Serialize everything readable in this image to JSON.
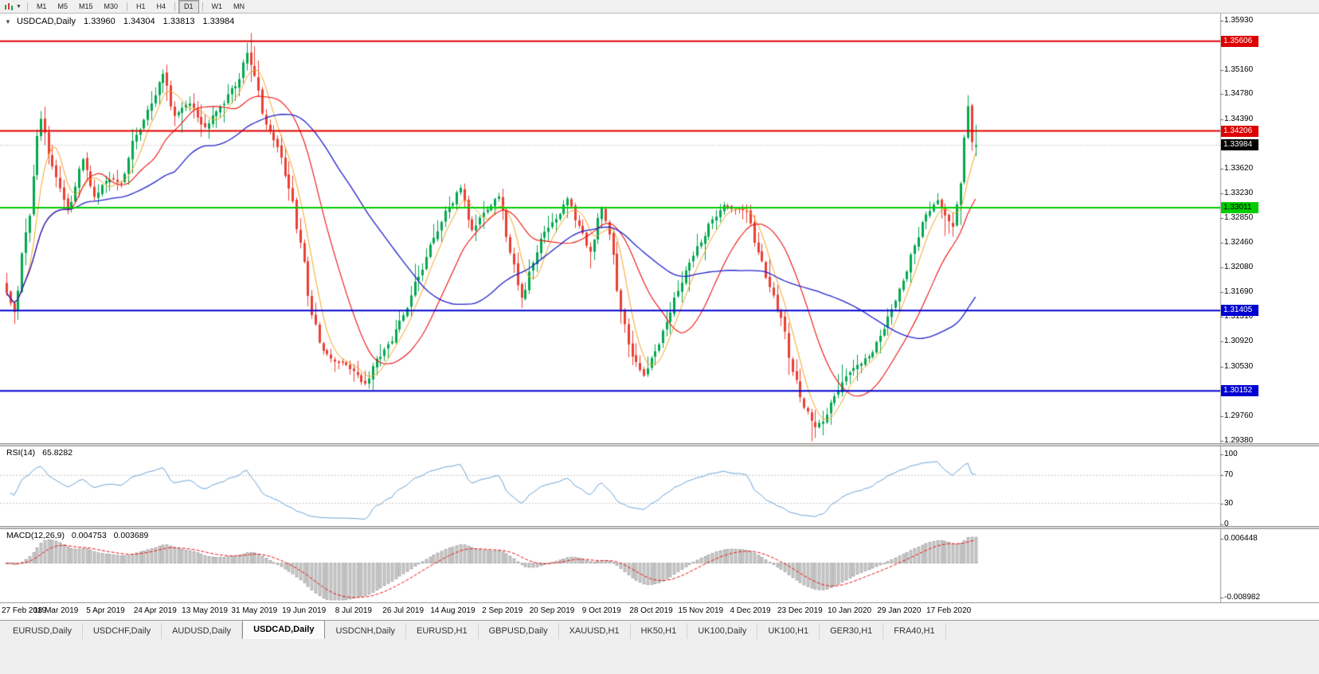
{
  "toolbar": {
    "chart_type_icon": "candlestick-chart-icon",
    "dropdown_icon": "caret-down-icon",
    "timeframes": [
      "M1",
      "M5",
      "M15",
      "M30",
      "H1",
      "H4",
      "D1",
      "W1",
      "MN"
    ],
    "active_timeframe": "D1"
  },
  "chart": {
    "header": {
      "marker": "▼",
      "symbol": "USDCAD,Daily",
      "open": "1.33960",
      "high": "1.34304",
      "low": "1.33813",
      "close": "1.33984"
    },
    "price_axis_ticks": [
      "1.35930",
      "1.35160",
      "1.34780",
      "1.34390",
      "1.33620",
      "1.33230",
      "1.32850",
      "1.32460",
      "1.32080",
      "1.31690",
      "1.31310",
      "1.30920",
      "1.30530",
      "1.29760",
      "1.29380"
    ],
    "date_axis": [
      "27 Feb 2019",
      "18 Mar 2019",
      "5 Apr 2019",
      "24 Apr 2019",
      "13 May 2019",
      "31 May 2019",
      "19 Jun 2019",
      "8 Jul 2019",
      "26 Jul 2019",
      "14 Aug 2019",
      "2 Sep 2019",
      "20 Sep 2019",
      "9 Oct 2019",
      "28 Oct 2019",
      "15 Nov 2019",
      "4 Dec 2019",
      "23 Dec 2019",
      "10 Jan 2020",
      "29 Jan 2020",
      "17 Feb 2020"
    ],
    "hlines": [
      {
        "price": 1.35606,
        "label": "1.35606",
        "color": "#dd0000",
        "text": "#ffffff"
      },
      {
        "price": 1.34206,
        "label": "1.34206",
        "color": "#dd0000",
        "text": "#ffffff"
      },
      {
        "price": 1.33011,
        "label": "1.33011",
        "color": "#00cc00",
        "text": "#000000"
      },
      {
        "price": 1.31405,
        "label": "1.31405",
        "color": "#0000d0",
        "text": "#ffffff"
      },
      {
        "price": 1.30152,
        "label": "1.30152",
        "color": "#0000d0",
        "text": "#ffffff"
      }
    ],
    "current_price": {
      "label": "1.33984",
      "value": 1.33984,
      "bg": "#000000",
      "text": "#ffffff"
    },
    "colors": {
      "up": "#02a84e",
      "down": "#e93f33",
      "ma_fast": "#f5a623",
      "ma_mid": "#ee1111",
      "ma_slow": "#2222cc",
      "bid_line": "#b0b0b0"
    }
  },
  "indicators": {
    "rsi": {
      "title": "RSI(14)",
      "value": "65.8282",
      "axis": [
        {
          "label": "100",
          "value": 100
        },
        {
          "label": "70",
          "value": 70
        },
        {
          "label": "30",
          "value": 30
        },
        {
          "label": "0",
          "value": 0
        }
      ],
      "levels": [
        70,
        30
      ],
      "line_color": "#6ba3d6",
      "level_color": "#c8c8c8"
    },
    "macd": {
      "title": "MACD(12,26,9)",
      "values": [
        "0.004753",
        "0.003689"
      ],
      "axis": [
        {
          "label": "0.006448",
          "value": 0.006448
        },
        {
          "label": "-0.008982",
          "value": -0.008982
        }
      ],
      "histogram_fill": "#cdcdcd",
      "histogram_stroke": "#8a8a8a",
      "signal_color": "#ee1111"
    }
  },
  "tabs": {
    "items": [
      "EURUSD,Daily",
      "USDCHF,Daily",
      "AUDUSD,Daily",
      "USDCAD,Daily",
      "USDCNH,Daily",
      "EURUSD,H1",
      "GBPUSD,Daily",
      "XAUUSD,H1",
      "HK50,H1",
      "UK100,Daily",
      "UK100,H1",
      "GER30,H1",
      "FRA40,H1"
    ],
    "active": "USDCAD,Daily"
  },
  "chart_data": {
    "type": "candlestick",
    "symbol": "USDCAD",
    "timeframe": "Daily",
    "visible_range": {
      "start": "27 Feb 2019",
      "end": "17 Feb 2020 + 7 bars"
    },
    "bars": 255,
    "price_range": [
      1.293,
      1.3605
    ],
    "last_bar": {
      "open": 1.3396,
      "high": 1.34304,
      "low": 1.33813,
      "close": 1.33984
    },
    "close_anchors": [
      [
        0,
        1.3168
      ],
      [
        2,
        1.3136
      ],
      [
        5,
        1.3262
      ],
      [
        9,
        1.3438
      ],
      [
        12,
        1.3362
      ],
      [
        14,
        1.3332
      ],
      [
        16,
        1.3296
      ],
      [
        20,
        1.3376
      ],
      [
        23,
        1.3322
      ],
      [
        26,
        1.335
      ],
      [
        30,
        1.3346
      ],
      [
        34,
        1.3416
      ],
      [
        38,
        1.3468
      ],
      [
        41,
        1.3512
      ],
      [
        44,
        1.3446
      ],
      [
        48,
        1.3466
      ],
      [
        52,
        1.3428
      ],
      [
        56,
        1.3456
      ],
      [
        60,
        1.3492
      ],
      [
        63,
        1.3546
      ],
      [
        65,
        1.3506
      ],
      [
        68,
        1.3428
      ],
      [
        71,
        1.3396
      ],
      [
        74,
        1.3332
      ],
      [
        77,
        1.3242
      ],
      [
        80,
        1.3132
      ],
      [
        83,
        1.3076
      ],
      [
        87,
        1.3056
      ],
      [
        91,
        1.3042
      ],
      [
        94,
        1.3026
      ],
      [
        97,
        1.3062
      ],
      [
        100,
        1.3086
      ],
      [
        104,
        1.3132
      ],
      [
        108,
        1.3196
      ],
      [
        112,
        1.3256
      ],
      [
        116,
        1.3302
      ],
      [
        119,
        1.3332
      ],
      [
        122,
        1.3266
      ],
      [
        126,
        1.3296
      ],
      [
        129,
        1.3322
      ],
      [
        132,
        1.3232
      ],
      [
        135,
        1.3166
      ],
      [
        138,
        1.3216
      ],
      [
        141,
        1.3266
      ],
      [
        144,
        1.3286
      ],
      [
        147,
        1.3316
      ],
      [
        150,
        1.3272
      ],
      [
        153,
        1.3232
      ],
      [
        156,
        1.3302
      ],
      [
        158,
        1.3262
      ],
      [
        161,
        1.3142
      ],
      [
        164,
        1.3072
      ],
      [
        167,
        1.3046
      ],
      [
        170,
        1.3082
      ],
      [
        173,
        1.3122
      ],
      [
        176,
        1.3172
      ],
      [
        179,
        1.3212
      ],
      [
        182,
        1.3246
      ],
      [
        185,
        1.3282
      ],
      [
        188,
        1.3302
      ],
      [
        191,
        1.3292
      ],
      [
        194,
        1.3296
      ],
      [
        197,
        1.3232
      ],
      [
        200,
        1.3172
      ],
      [
        203,
        1.3122
      ],
      [
        206,
        1.3042
      ],
      [
        209,
        1.2986
      ],
      [
        212,
        1.2956
      ],
      [
        214,
        1.2966
      ],
      [
        217,
        1.3012
      ],
      [
        220,
        1.3036
      ],
      [
        223,
        1.3052
      ],
      [
        226,
        1.3072
      ],
      [
        229,
        1.3106
      ],
      [
        232,
        1.3142
      ],
      [
        235,
        1.3186
      ],
      [
        238,
        1.3242
      ],
      [
        241,
        1.3292
      ],
      [
        244,
        1.3316
      ],
      [
        246,
        1.3292
      ],
      [
        248,
        1.3272
      ],
      [
        250,
        1.3342
      ],
      [
        251,
        1.3416
      ],
      [
        252,
        1.3466
      ],
      [
        253,
        1.3406
      ],
      [
        254,
        1.33984
      ]
    ],
    "extremes": [
      {
        "index": 63,
        "high": 1.3558
      },
      {
        "index": 94,
        "low": 1.3024
      },
      {
        "index": 212,
        "low": 1.2942
      },
      {
        "index": 252,
        "high": 1.347
      }
    ],
    "moving_averages": [
      {
        "name": "fast",
        "period": 6,
        "color": "#f5a623"
      },
      {
        "name": "mid",
        "period": 18,
        "color": "#ee1111"
      },
      {
        "name": "slow",
        "period": 45,
        "color": "#2222cc"
      }
    ]
  }
}
